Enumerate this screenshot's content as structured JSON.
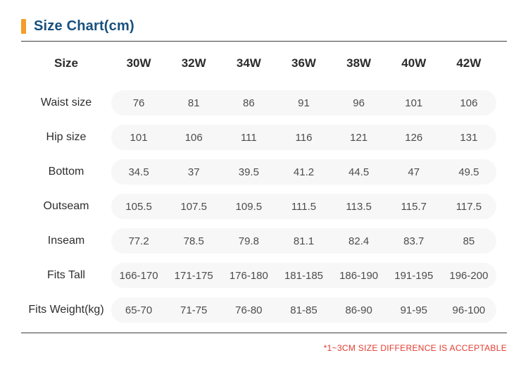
{
  "title": {
    "text": "Size Chart(cm)"
  },
  "colors": {
    "accent_orange": "#F49D2A",
    "title_blue": "#17507E",
    "note_red": "#E23C2E",
    "pill_gray": "#F7F7F7",
    "divider_dark": "#3F3F3F"
  },
  "table": {
    "header": {
      "label": "Size",
      "columns": [
        "30W",
        "32W",
        "34W",
        "36W",
        "38W",
        "40W",
        "42W"
      ]
    },
    "rows": [
      {
        "label": "Waist size",
        "values": [
          "76",
          "81",
          "86",
          "91",
          "96",
          "101",
          "106"
        ]
      },
      {
        "label": "Hip size",
        "values": [
          "101",
          "106",
          "111",
          "116",
          "121",
          "126",
          "131"
        ]
      },
      {
        "label": "Bottom",
        "values": [
          "34.5",
          "37",
          "39.5",
          "41.2",
          "44.5",
          "47",
          "49.5"
        ]
      },
      {
        "label": "Outseam",
        "values": [
          "105.5",
          "107.5",
          "109.5",
          "111.5",
          "113.5",
          "115.7",
          "117.5"
        ]
      },
      {
        "label": "Inseam",
        "values": [
          "77.2",
          "78.5",
          "79.8",
          "81.1",
          "82.4",
          "83.7",
          "85"
        ]
      },
      {
        "label": "Fits Tall",
        "values": [
          "166-170",
          "171-175",
          "176-180",
          "181-185",
          "186-190",
          "191-195",
          "196-200"
        ]
      },
      {
        "label": "Fits Weight(kg)",
        "values": [
          "65-70",
          "71-75",
          "76-80",
          "81-85",
          "86-90",
          "91-95",
          "96-100"
        ]
      }
    ]
  },
  "footer": {
    "note": "*1~3CM SIZE DIFFERENCE IS ACCEPTABLE"
  },
  "chart_data": {
    "type": "table",
    "title": "Size Chart(cm)",
    "columns": [
      "Size",
      "30W",
      "32W",
      "34W",
      "36W",
      "38W",
      "40W",
      "42W"
    ],
    "rows": [
      [
        "Waist size",
        76,
        81,
        86,
        91,
        96,
        101,
        106
      ],
      [
        "Hip size",
        101,
        106,
        111,
        116,
        121,
        126,
        131
      ],
      [
        "Bottom",
        34.5,
        37,
        39.5,
        41.2,
        44.5,
        47,
        49.5
      ],
      [
        "Outseam",
        105.5,
        107.5,
        109.5,
        111.5,
        113.5,
        115.7,
        117.5
      ],
      [
        "Inseam",
        77.2,
        78.5,
        79.8,
        81.1,
        82.4,
        83.7,
        85
      ],
      [
        "Fits Tall",
        "166-170",
        "171-175",
        "176-180",
        "181-185",
        "186-190",
        "191-195",
        "196-200"
      ],
      [
        "Fits Weight(kg)",
        "65-70",
        "71-75",
        "76-80",
        "81-85",
        "86-90",
        "91-95",
        "96-100"
      ]
    ],
    "note": "*1~3CM SIZE DIFFERENCE IS ACCEPTABLE"
  }
}
